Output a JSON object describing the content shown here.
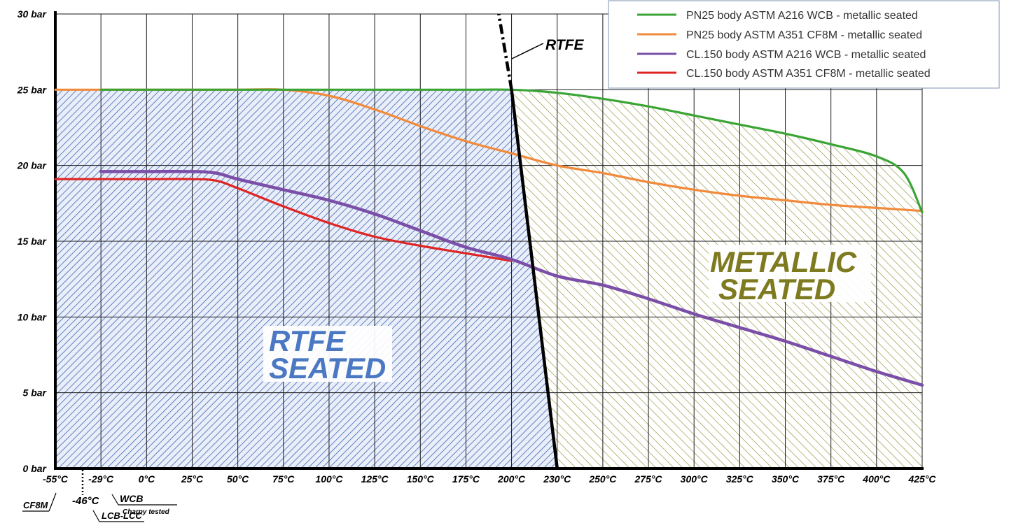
{
  "chart_data": {
    "type": "line",
    "x_ticks": [
      {
        "x": -55,
        "label": "-55°C"
      },
      {
        "x": -29,
        "label": "-29°C"
      },
      {
        "x": 0,
        "label": "0°C"
      },
      {
        "x": 25,
        "label": "25°C"
      },
      {
        "x": 50,
        "label": "50°C"
      },
      {
        "x": 75,
        "label": "75°C"
      },
      {
        "x": 100,
        "label": "100°C"
      },
      {
        "x": 125,
        "label": "125°C"
      },
      {
        "x": 150,
        "label": "150°C"
      },
      {
        "x": 175,
        "label": "175°C"
      },
      {
        "x": 200,
        "label": "200°C"
      },
      {
        "x": 230,
        "label": "230°C"
      },
      {
        "x": 250,
        "label": "250°C"
      },
      {
        "x": 275,
        "label": "275°C"
      },
      {
        "x": 300,
        "label": "300°C"
      },
      {
        "x": 325,
        "label": "325°C"
      },
      {
        "x": 350,
        "label": "350°C"
      },
      {
        "x": 375,
        "label": "375°C"
      },
      {
        "x": 400,
        "label": "400°C"
      },
      {
        "x": 425,
        "label": "425°C"
      }
    ],
    "y_ticks": [
      {
        "y": 0,
        "label": "0 bar"
      },
      {
        "y": 5,
        "label": "5 bar"
      },
      {
        "y": 10,
        "label": "10 bar"
      },
      {
        "y": 15,
        "label": "15 bar"
      },
      {
        "y": 20,
        "label": "20 bar"
      },
      {
        "y": 25,
        "label": "25 bar"
      },
      {
        "y": 30,
        "label": "30 bar"
      }
    ],
    "ylim": [
      0,
      30
    ],
    "grid": true,
    "legend_position": "top-right",
    "series": [
      {
        "name": "PN25 body ASTM A216 WCB - metallic seated",
        "color": "#3aa535",
        "points": [
          [
            -29,
            25
          ],
          [
            0,
            25
          ],
          [
            25,
            25
          ],
          [
            50,
            25
          ],
          [
            75,
            25
          ],
          [
            100,
            25
          ],
          [
            125,
            25
          ],
          [
            150,
            25
          ],
          [
            175,
            25
          ],
          [
            200,
            25
          ],
          [
            230,
            24.8
          ],
          [
            250,
            24.4
          ],
          [
            275,
            23.9
          ],
          [
            300,
            23.3
          ],
          [
            325,
            22.7
          ],
          [
            350,
            22.1
          ],
          [
            375,
            21.4
          ],
          [
            400,
            20.6
          ],
          [
            415,
            19.5
          ],
          [
            425,
            16.9
          ]
        ]
      },
      {
        "name": "PN25 body ASTM A351 CF8M - metallic seated",
        "color": "#f28a3c",
        "points": [
          [
            -55,
            25
          ],
          [
            0,
            25
          ],
          [
            25,
            25
          ],
          [
            50,
            25
          ],
          [
            75,
            25
          ],
          [
            100,
            24.6
          ],
          [
            125,
            23.7
          ],
          [
            150,
            22.6
          ],
          [
            175,
            21.6
          ],
          [
            200,
            20.8
          ],
          [
            230,
            20
          ],
          [
            250,
            19.5
          ],
          [
            275,
            18.9
          ],
          [
            300,
            18.4
          ],
          [
            325,
            18
          ],
          [
            350,
            17.7
          ],
          [
            375,
            17.4
          ],
          [
            400,
            17.2
          ],
          [
            425,
            17
          ]
        ]
      },
      {
        "name": "CL.150 body ASTM A216 WCB - metallic seated",
        "color": "#7b4fa8",
        "points": [
          [
            -29,
            19.6
          ],
          [
            0,
            19.6
          ],
          [
            25,
            19.6
          ],
          [
            38,
            19.5
          ],
          [
            50,
            19.1
          ],
          [
            75,
            18.4
          ],
          [
            100,
            17.7
          ],
          [
            125,
            16.8
          ],
          [
            150,
            15.7
          ],
          [
            175,
            14.6
          ],
          [
            200,
            13.8
          ],
          [
            230,
            12.7
          ],
          [
            250,
            12.1
          ],
          [
            275,
            11.2
          ],
          [
            300,
            10.2
          ],
          [
            325,
            9.3
          ],
          [
            350,
            8.4
          ],
          [
            375,
            7.4
          ],
          [
            400,
            6.4
          ],
          [
            425,
            5.5
          ]
        ]
      },
      {
        "name": "CL.150 body  ASTM A351 CF8M - metallic seated",
        "color": "#e02424",
        "points": [
          [
            -55,
            19.1
          ],
          [
            0,
            19.1
          ],
          [
            25,
            19.1
          ],
          [
            38,
            19
          ],
          [
            50,
            18.5
          ],
          [
            75,
            17.3
          ],
          [
            100,
            16.2
          ],
          [
            125,
            15.3
          ],
          [
            150,
            14.7
          ],
          [
            175,
            14.2
          ],
          [
            200,
            13.7
          ]
        ]
      }
    ],
    "rtfe_boundary": {
      "label": "RTFE",
      "points": [
        [
          230,
          0
        ],
        [
          200,
          25
        ]
      ],
      "dashed_extension": [
        [
          200,
          25
        ],
        [
          193,
          30
        ]
      ]
    },
    "regions": [
      {
        "name": "rtfe-seated",
        "label_lines": [
          "RTFE",
          "SEATED"
        ],
        "color": "#3f68b8"
      },
      {
        "name": "metallic-seated",
        "label_lines": [
          "METALLIC",
          "SEATED"
        ],
        "color": "#7d7a1f"
      }
    ],
    "annotations": {
      "cf8m": "CF8M",
      "minus46": "-46°C",
      "wcb": "WCB",
      "charpy": "Charpy tested",
      "lcb_lcc": "LCB-LCC"
    }
  }
}
